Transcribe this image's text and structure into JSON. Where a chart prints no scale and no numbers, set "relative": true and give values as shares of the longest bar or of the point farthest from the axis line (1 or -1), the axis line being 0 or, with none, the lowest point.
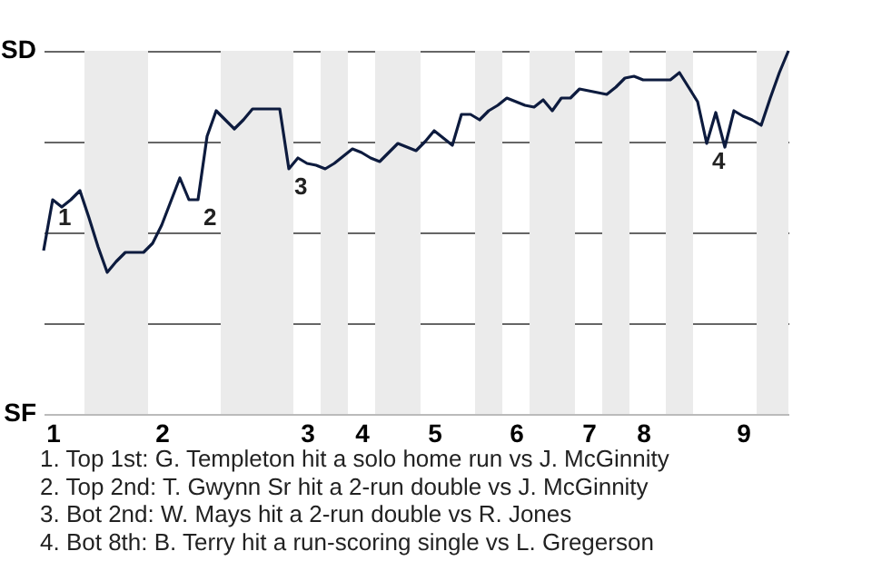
{
  "chart_data": {
    "type": "line",
    "relative": true,
    "categories": [
      null,
      "1",
      null,
      null,
      null,
      null,
      null,
      null,
      null,
      null,
      null,
      null,
      null,
      "2",
      null,
      null,
      null,
      null,
      null,
      null,
      null,
      null,
      null,
      null,
      null,
      null,
      null,
      null,
      null,
      "3",
      null,
      null,
      null,
      null,
      null,
      "4",
      null,
      null,
      null,
      null,
      null,
      null,
      null,
      "5",
      null,
      null,
      null,
      null,
      null,
      null,
      null,
      null,
      "6",
      null,
      null,
      null,
      null,
      null,
      null,
      null,
      "7",
      null,
      null,
      null,
      null,
      null,
      "8",
      null,
      null,
      null,
      null,
      null,
      null,
      null,
      null,
      null,
      null,
      "9",
      null,
      null,
      null,
      null,
      null
    ],
    "series": [
      {
        "color": "#0d1b3e",
        "values": [
          0.45,
          0.59,
          0.57,
          0.59,
          0.615,
          0.54,
          0.46,
          0.39,
          0.42,
          0.445,
          0.445,
          0.445,
          0.47,
          0.52,
          0.585,
          0.65,
          0.59,
          0.59,
          0.765,
          0.835,
          0.81,
          0.785,
          0.81,
          0.84,
          0.84,
          0.84,
          0.84,
          0.675,
          0.705,
          0.69,
          0.685,
          0.675,
          0.69,
          0.71,
          0.73,
          0.72,
          0.705,
          0.695,
          0.72,
          0.745,
          0.735,
          0.725,
          0.75,
          0.78,
          0.76,
          0.74,
          0.825,
          0.825,
          0.81,
          0.835,
          0.85,
          0.87,
          0.86,
          0.85,
          0.845,
          0.865,
          0.835,
          0.87,
          0.87,
          0.895,
          0.89,
          0.885,
          0.88,
          0.9,
          0.925,
          0.93,
          0.92,
          0.92,
          0.92,
          0.92,
          0.94,
          0.9,
          0.86,
          0.745,
          0.83,
          0.735,
          0.835,
          0.82,
          0.81,
          0.795,
          0.87,
          0.94,
          1
        ],
        "name": null
      }
    ],
    "grid": "y",
    "marker": "none",
    "line_style": "solid",
    "annotations": [
      "SD",
      "SF",
      "1",
      "2",
      "3",
      "4",
      "1. Top 1st: G. Templeton hit a solo home run vs J. McGinnity",
      "2. Top 2nd: T. Gwynn Sr hit a 2-run double vs J. McGinnity",
      "3. Bot 2nd: W. Mays hit a 2-run double vs R. Jones",
      "4. Bot 8th: B. Terry hit a run-scoring single vs L. Gregerson"
    ]
  }
}
